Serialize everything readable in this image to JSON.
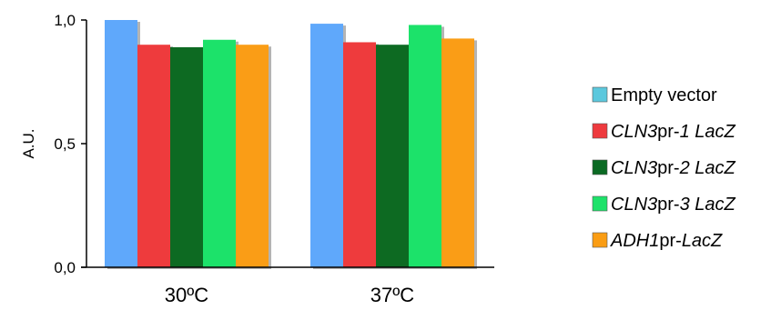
{
  "chart_data": {
    "type": "bar",
    "categories": [
      "30ºC",
      "37ºC"
    ],
    "series": [
      {
        "name": "Empty vector",
        "color": "#5fa8fb",
        "legend_color": "#5cc8dd",
        "values": [
          1.0,
          0.985
        ]
      },
      {
        "name": "CLN3pr-1 LacZ",
        "color": "#ee3a3e",
        "values": [
          0.9,
          0.91
        ]
      },
      {
        "name": "CLN3pr-2 LacZ",
        "color": "#0b6a23",
        "values": [
          0.89,
          0.9
        ]
      },
      {
        "name": "CLN3pr-3 LacZ",
        "color": "#1ee26a",
        "values": [
          0.92,
          0.98
        ]
      },
      {
        "name": "ADH1pr-LacZ",
        "color": "#fa9d14",
        "values": [
          0.9,
          0.925
        ]
      }
    ],
    "legend": [
      {
        "parts": [
          {
            "t": "Empty vector",
            "i": false
          }
        ]
      },
      {
        "parts": [
          {
            "t": "CLN3",
            "i": true
          },
          {
            "t": "pr-",
            "i": false
          },
          {
            "t": "1 LacZ",
            "i": true
          }
        ]
      },
      {
        "parts": [
          {
            "t": "CLN3",
            "i": true
          },
          {
            "t": "pr-",
            "i": false
          },
          {
            "t": "2 LacZ",
            "i": true
          }
        ]
      },
      {
        "parts": [
          {
            "t": "CLN3",
            "i": true
          },
          {
            "t": "pr-",
            "i": false
          },
          {
            "t": "3 LacZ",
            "i": true
          }
        ]
      },
      {
        "parts": [
          {
            "t": "ADH1",
            "i": true
          },
          {
            "t": "pr-",
            "i": false
          },
          {
            "t": "LacZ",
            "i": true
          }
        ]
      }
    ],
    "ylabel": "A.U.",
    "xlabel": "",
    "ylim": [
      0,
      1.0
    ],
    "yticks": [
      0.0,
      0.5,
      1.0
    ],
    "ytick_labels": [
      "0,0",
      "0,5",
      "1,0"
    ],
    "legend_position": "right",
    "grid": false
  }
}
